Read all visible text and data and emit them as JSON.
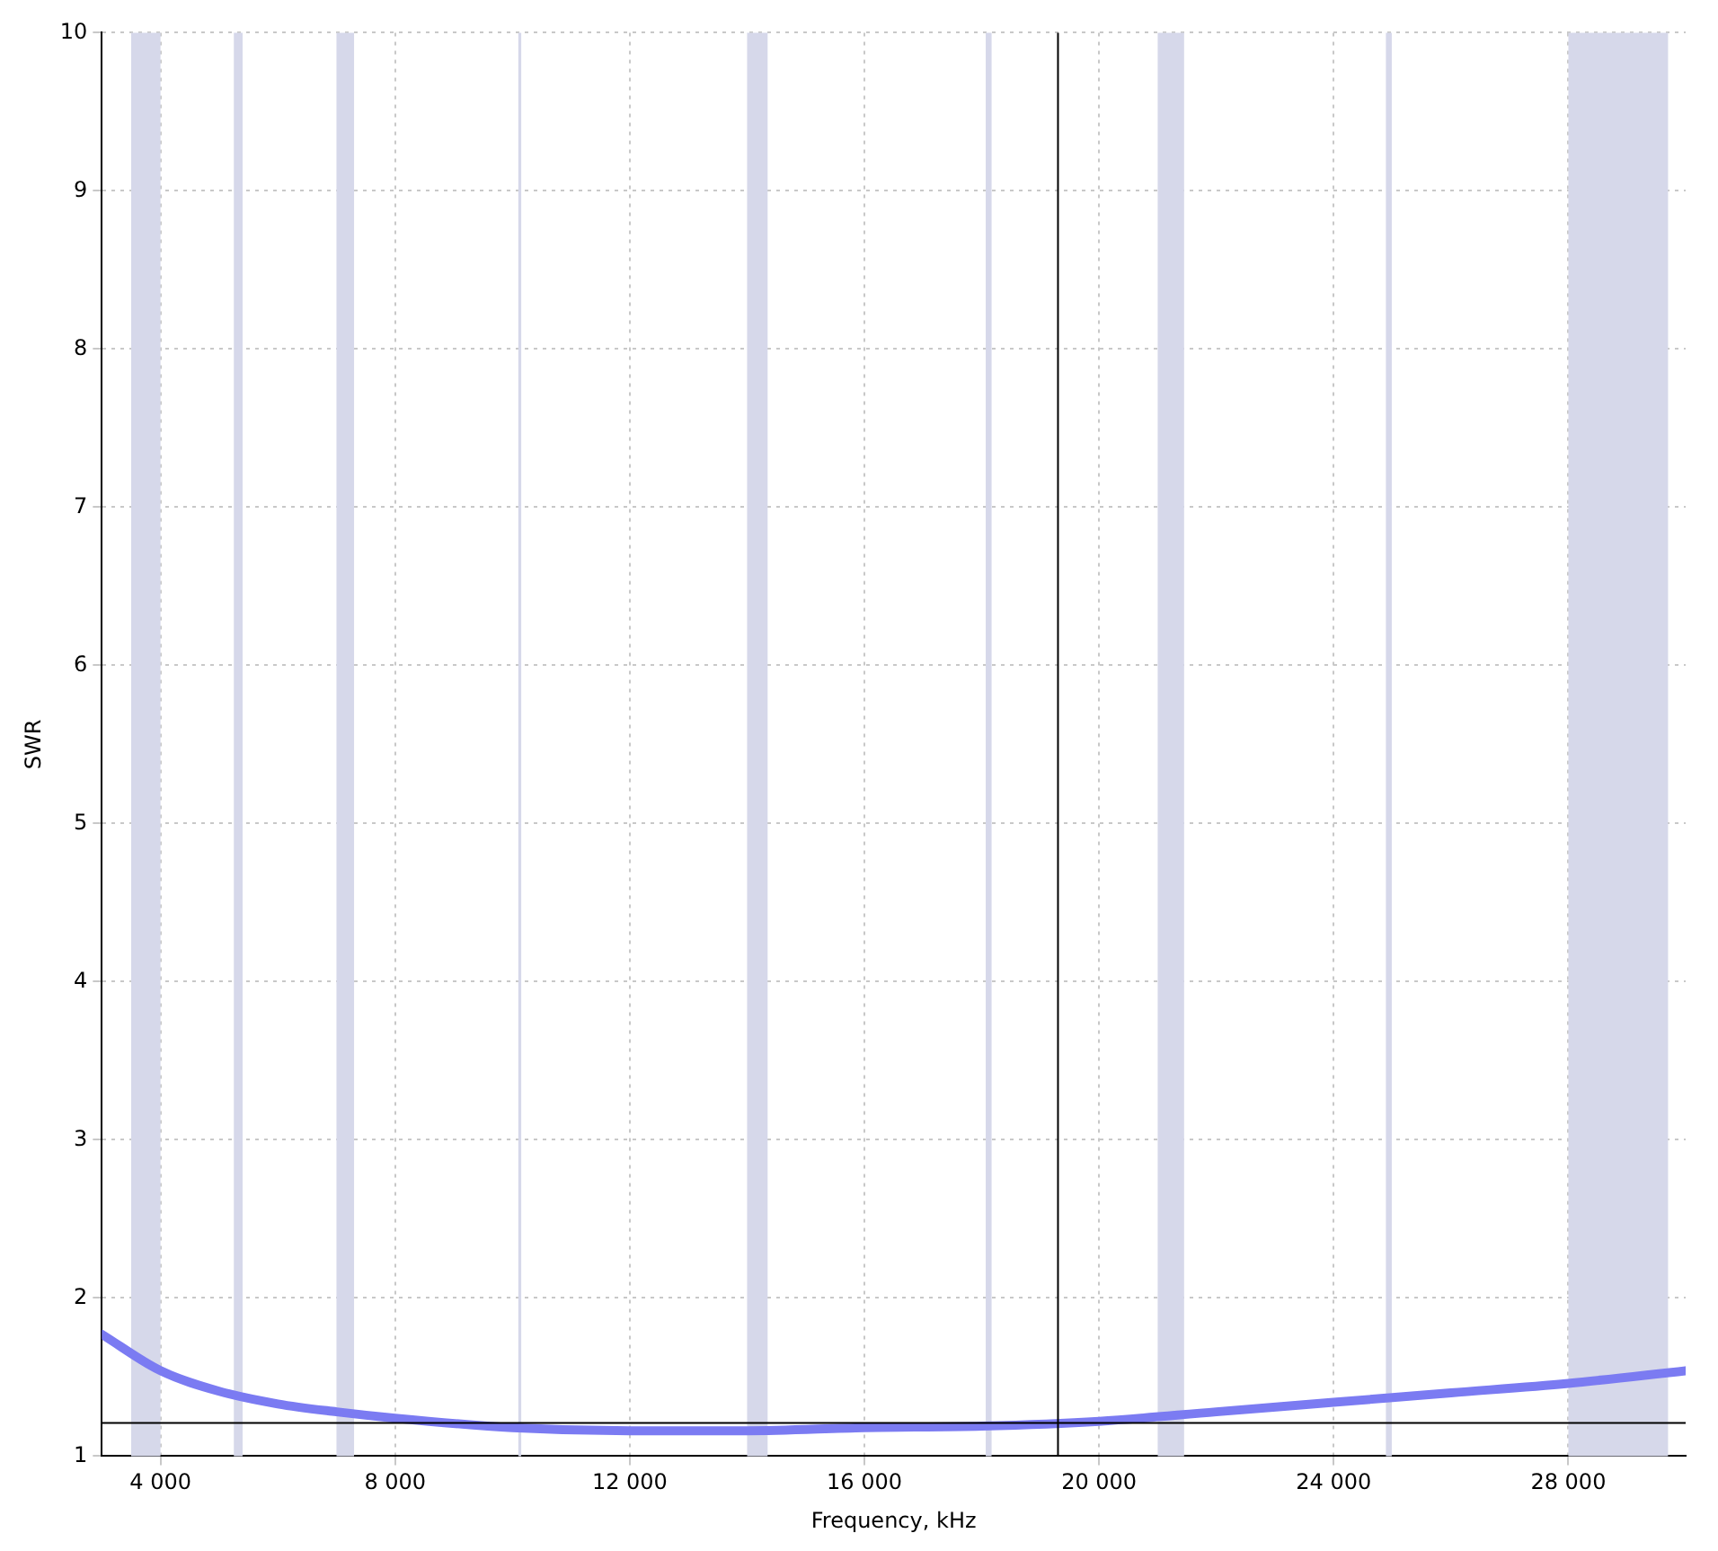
{
  "chart_data": {
    "type": "line",
    "xlabel": "Frequency, kHz",
    "ylabel": "SWR",
    "xlim": [
      3000,
      30000
    ],
    "ylim": [
      1,
      10
    ],
    "xticks": [
      {
        "value": 4000,
        "label": "4 000"
      },
      {
        "value": 8000,
        "label": "8 000"
      },
      {
        "value": 12000,
        "label": "12 000"
      },
      {
        "value": 16000,
        "label": "16 000"
      },
      {
        "value": 20000,
        "label": "20 000"
      },
      {
        "value": 24000,
        "label": "24 000"
      },
      {
        "value": 28000,
        "label": "28 000"
      }
    ],
    "yticks": [
      1,
      2,
      3,
      4,
      5,
      6,
      7,
      8,
      9,
      10
    ],
    "grid": true,
    "marker": "none",
    "line_style": "solid",
    "series": [
      {
        "color": "#7b7bf2",
        "x": [
          3000,
          4000,
          5000,
          6000,
          7000,
          8000,
          10000,
          12000,
          14000,
          16000,
          18000,
          20000,
          22000,
          24000,
          26000,
          28000,
          30000
        ],
        "values": [
          1.77,
          1.54,
          1.41,
          1.33,
          1.28,
          1.24,
          1.18,
          1.16,
          1.16,
          1.18,
          1.19,
          1.22,
          1.28,
          1.34,
          1.4,
          1.46,
          1.54
        ]
      }
    ],
    "bands": [
      {
        "axis": "x",
        "from": 3500,
        "to": 4000,
        "color": "#d6d8ea"
      },
      {
        "axis": "x",
        "from": 5250,
        "to": 5400,
        "color": "#d6d8ea"
      },
      {
        "axis": "x",
        "from": 7000,
        "to": 7300,
        "color": "#d6d8ea"
      },
      {
        "axis": "x",
        "from": 10100,
        "to": 10150,
        "color": "#d6d8ea"
      },
      {
        "axis": "x",
        "from": 14000,
        "to": 14350,
        "color": "#d6d8ea"
      },
      {
        "axis": "x",
        "from": 18068,
        "to": 18168,
        "color": "#d6d8ea"
      },
      {
        "axis": "x",
        "from": 21000,
        "to": 21450,
        "color": "#d6d8ea"
      },
      {
        "axis": "x",
        "from": 24890,
        "to": 24990,
        "color": "#d6d8ea"
      },
      {
        "axis": "x",
        "from": 28000,
        "to": 29700,
        "color": "#d6d8ea"
      }
    ],
    "ref_lines": [
      {
        "axis": "x",
        "value": 19300,
        "color": "#000000"
      },
      {
        "axis": "y",
        "value": 1.21,
        "color": "#000000"
      }
    ]
  }
}
